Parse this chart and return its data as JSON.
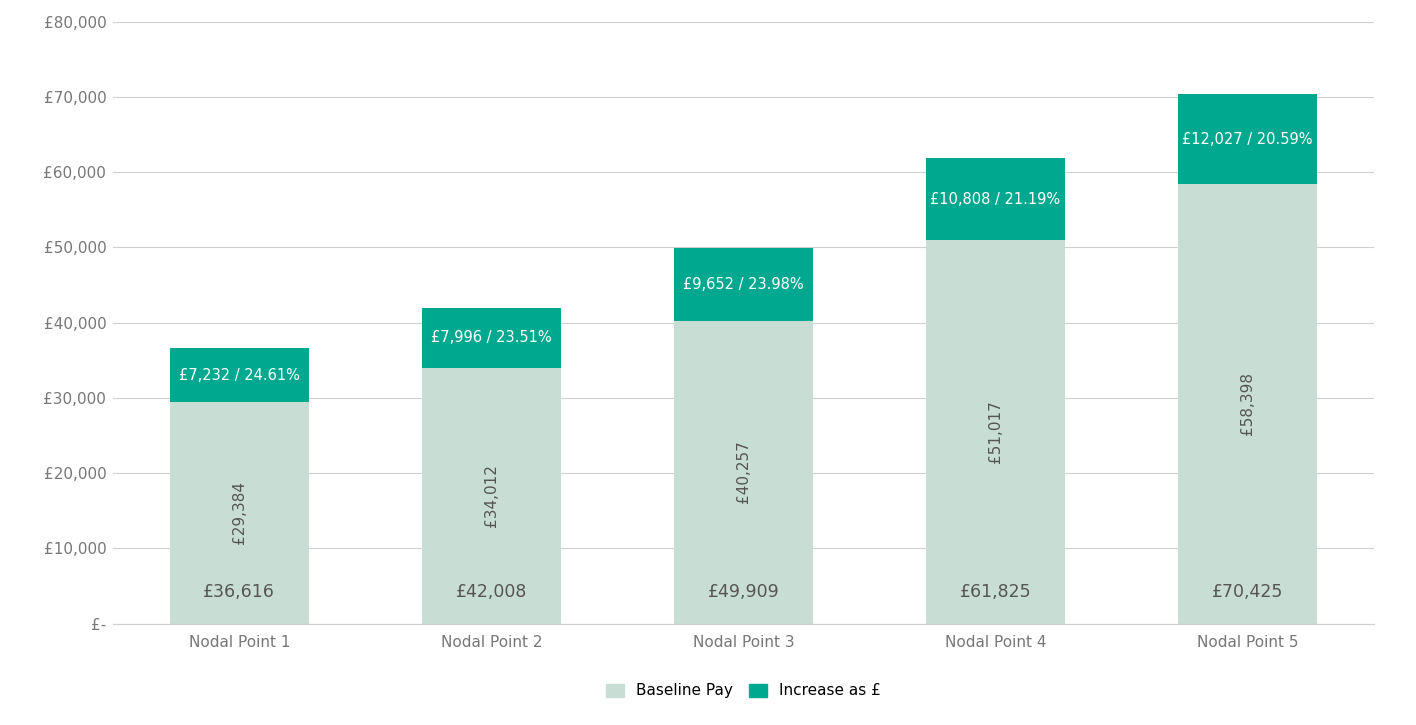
{
  "categories": [
    "Nodal Point 1",
    "Nodal Point 2",
    "Nodal Point 3",
    "Nodal Point 4",
    "Nodal Point 5"
  ],
  "baseline_values": [
    29384,
    34012,
    40257,
    51017,
    58398
  ],
  "increase_values": [
    7232,
    7996,
    9652,
    10808,
    12027
  ],
  "increase_labels": [
    "£7,232 / 24.61%",
    "£7,996 / 23.51%",
    "£9,652 / 23.98%",
    "£10,808 / 21.19%",
    "£12,027 / 20.59%"
  ],
  "baseline_labels": [
    "£29,384",
    "£34,012",
    "£40,257",
    "£51,017",
    "£58,398"
  ],
  "total_labels": [
    "£36,616",
    "£42,008",
    "£49,909",
    "£61,825",
    "£70,425"
  ],
  "baseline_color": "#c8ddd4",
  "increase_color": "#00a88f",
  "ylim": [
    0,
    80000
  ],
  "yticks": [
    0,
    10000,
    20000,
    30000,
    40000,
    50000,
    60000,
    70000,
    80000
  ],
  "ytick_labels": [
    "£-",
    "£10,000",
    "£20,000",
    "£30,000",
    "£40,000",
    "£50,000",
    "£60,000",
    "£70,000",
    "£80,000"
  ],
  "legend_baseline": "Baseline Pay",
  "legend_increase": "Increase as £",
  "background_color": "#ffffff",
  "bar_width": 0.55,
  "text_color_dark": "#555555",
  "text_color_white": "#ffffff",
  "gridline_color": "#d0d0d0"
}
